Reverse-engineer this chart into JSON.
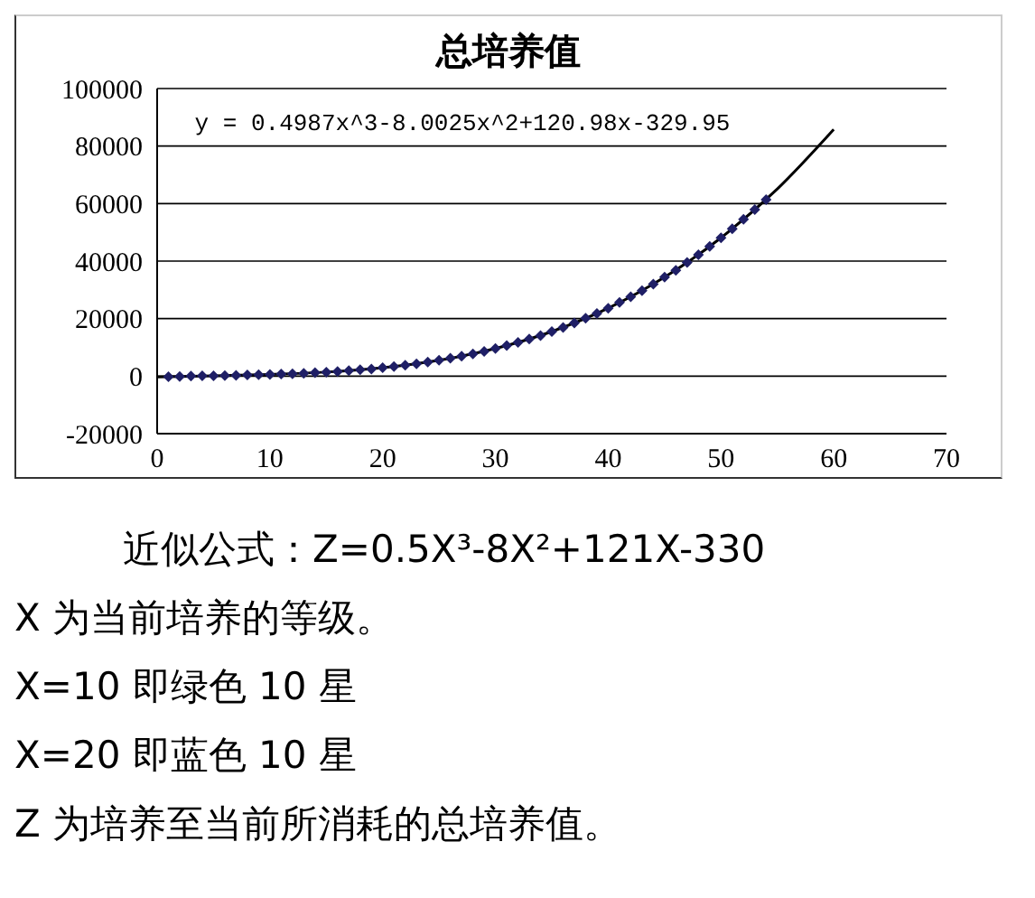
{
  "chart_data": {
    "type": "scatter",
    "title": "总培养值",
    "xlim": [
      0,
      70
    ],
    "xticks": [
      0,
      10,
      20,
      30,
      40,
      50,
      60,
      70
    ],
    "ylim": [
      -20000,
      100000
    ],
    "yticks": [
      -20000,
      0,
      20000,
      40000,
      60000,
      80000,
      100000
    ],
    "grid": "y",
    "legend": false,
    "series": [
      {
        "type": "scatter",
        "color": "#1f1f66",
        "marker": "diamond",
        "x": [
          1,
          2,
          3,
          4,
          5,
          6,
          7,
          8,
          9,
          10,
          11,
          12,
          13,
          14,
          15,
          16,
          17,
          18,
          19,
          20,
          21,
          22,
          23,
          24,
          25,
          26,
          27,
          28,
          29,
          30,
          31,
          32,
          33,
          34,
          35,
          36,
          37,
          38,
          39,
          40,
          41,
          42,
          43,
          44,
          45,
          46,
          47,
          48,
          49,
          50,
          51,
          52,
          53,
          54
        ],
        "values": [
          -200,
          -100,
          0,
          100,
          100,
          200,
          300,
          400,
          500,
          600,
          700,
          800,
          1000,
          1200,
          1400,
          1600,
          1900,
          2200,
          2500,
          2900,
          3300,
          3800,
          4300,
          4900,
          5500,
          6200,
          6900,
          7700,
          8600,
          9600,
          10600,
          11700,
          12900,
          14100,
          15500,
          16900,
          18500,
          20100,
          21800,
          23600,
          25600,
          27600,
          29700,
          32000,
          34400,
          36800,
          39500,
          42200,
          45100,
          48100,
          51200,
          54500,
          57900,
          61400
        ]
      },
      {
        "type": "line",
        "color": "#000000",
        "marker": "none",
        "x": [
          0,
          5,
          10,
          15,
          20,
          25,
          30,
          35,
          40,
          45,
          50,
          55,
          60
        ],
        "values": [
          -300,
          100,
          600,
          1400,
          2900,
          5500,
          9600,
          15500,
          23600,
          34400,
          48100,
          65100,
          85800
        ]
      }
    ],
    "annotations": [
      "y = 0.4987x^3-8.0025x^2+120.98x-329.95",
      "近似公式：Z=0.5X³-8X²+121X-330",
      "X 为当前培养的等级。",
      "X=10 即绿色 10 星",
      "X=20 即蓝色 10 星",
      "Z 为培养至当前所消耗的总培养值。"
    ]
  }
}
